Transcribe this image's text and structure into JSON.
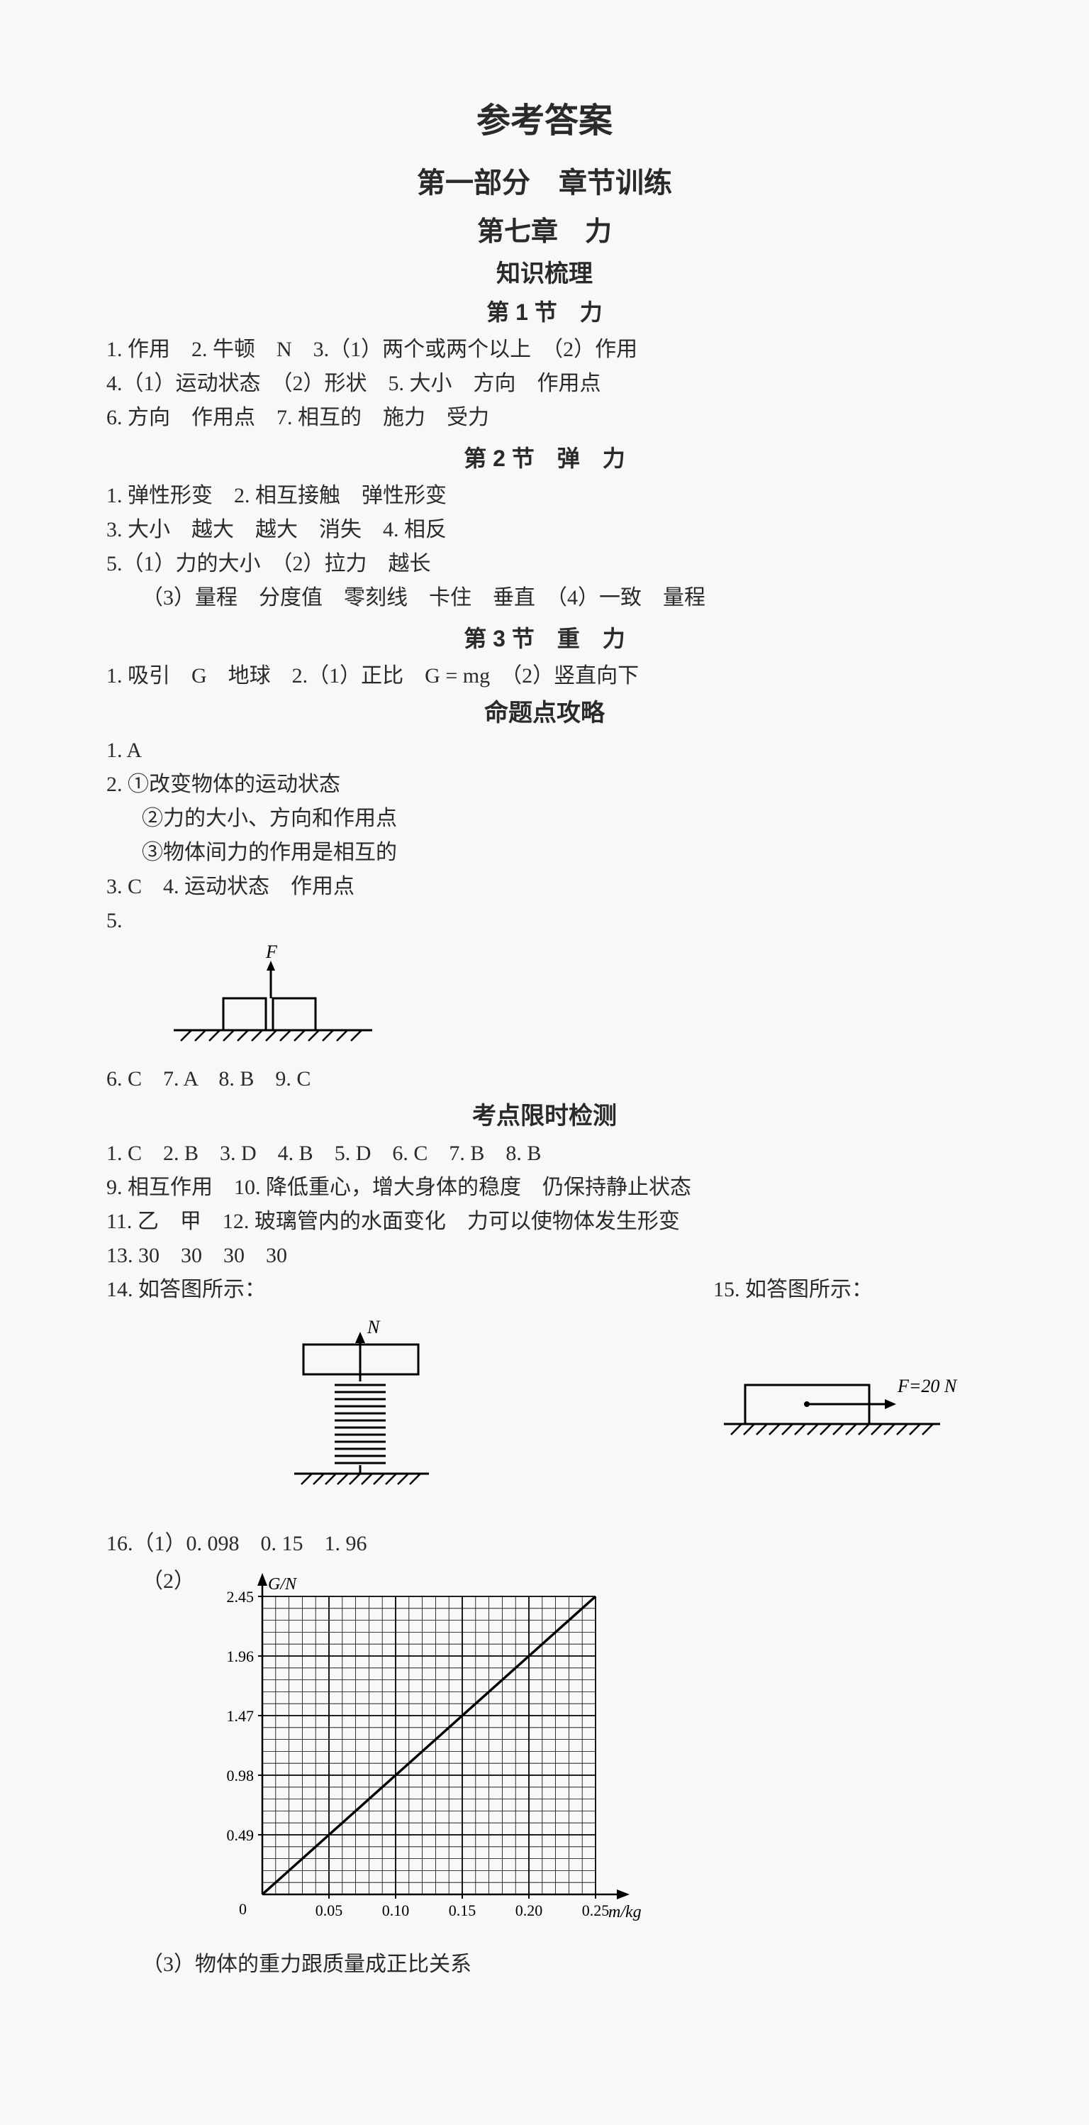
{
  "title_main": "参考答案",
  "title_part": "第一部分　章节训练",
  "title_chapter": "第七章　力",
  "title_sub_knowledge": "知识梳理",
  "sec1_title": "第 1 节　力",
  "sec1_l1": "1. 作用　2. 牛顿　N　3.（1）两个或两个以上　（2）作用",
  "sec1_l2": "4.（1）运动状态　（2）形状　5. 大小　方向　作用点",
  "sec1_l3": "6. 方向　作用点　7. 相互的　施力　受力",
  "sec2_title": "第 2 节　弹　力",
  "sec2_l1": "1. 弹性形变　2. 相互接触　弹性形变",
  "sec2_l2": "3. 大小　越大　越大　消失　4. 相反",
  "sec2_l3": "5.（1）力的大小　（2）拉力　越长",
  "sec2_l4": "（3）量程　分度值　零刻线　卡住　垂直　（4）一致　量程",
  "sec3_title": "第 3 节　重　力",
  "sec3_l1": "1. 吸引　G　地球　2.（1）正比　G = mg　（2）竖直向下",
  "title_sub_topics": "命题点攻略",
  "tp_l1": "1. A",
  "tp_l2": "2. ①改变物体的运动状态",
  "tp_l3": "②力的大小、方向和作用点",
  "tp_l4": "③物体间力的作用是相互的",
  "tp_l5": "3. C　4. 运动状态　作用点",
  "tp_l6": "5.",
  "tp_l7": "6. C　7. A　8. B　9. C",
  "title_sub_exam": "考点限时检测",
  "ex_l1": "1. C　2. B　3. D　4. B　5. D　6. C　7. B　8. B",
  "ex_l2": "9. 相互作用　10. 降低重心，增大身体的稳度　仍保持静止状态",
  "ex_l3": "11. 乙　甲　12. 玻璃管内的水面变化　力可以使物体发生形变",
  "ex_l4": "13. 30　30　30　30",
  "ex_l5": "14. 如答图所示：",
  "ex_l5b": "15. 如答图所示：",
  "ex_l6": "16.（1）0. 098　0. 15　1. 96",
  "ex_l7": "（2）",
  "ex_l8": "（3）物体的重力跟质量成正比关系",
  "diagram5": {
    "label_F": "F",
    "stroke": "#000000",
    "hatch_stroke": "#000000"
  },
  "diagram14": {
    "label_N": "N",
    "stroke": "#000000"
  },
  "diagram15": {
    "label_F": "F=20 N",
    "stroke": "#000000"
  },
  "chart16": {
    "type": "line",
    "x_label": "m/kg",
    "y_label": "G/N",
    "x_ticks": [
      "0",
      "0.05",
      "0.10",
      "0.15",
      "0.20",
      "0.25"
    ],
    "y_ticks": [
      "0",
      "0.49",
      "0.98",
      "1.47",
      "1.96",
      "2.45"
    ],
    "axis_color": "#000000",
    "grid_color": "#000000",
    "line_color": "#000000",
    "background_color": "#f8f8f6",
    "points": [
      [
        0,
        0
      ],
      [
        0.05,
        0.49
      ],
      [
        0.1,
        0.98
      ],
      [
        0.15,
        1.47
      ],
      [
        0.2,
        1.96
      ],
      [
        0.25,
        2.45
      ]
    ]
  }
}
